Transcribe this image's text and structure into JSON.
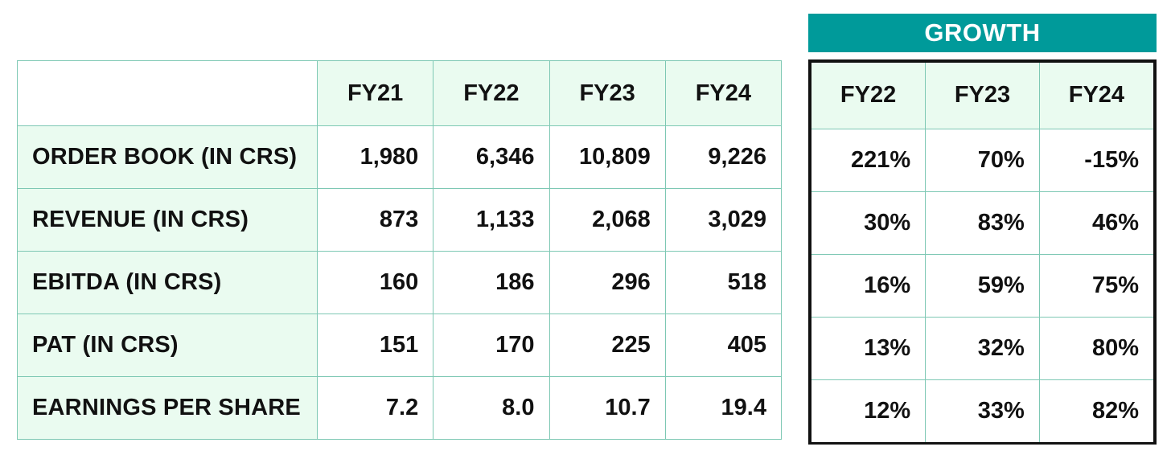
{
  "financials": {
    "headers": [
      "FY21",
      "FY22",
      "FY23",
      "FY24"
    ],
    "rows": [
      {
        "label": "ORDER BOOK (IN CRS)",
        "values": [
          "1,980",
          "6,346",
          "10,809",
          "9,226"
        ]
      },
      {
        "label": "REVENUE (IN CRS)",
        "values": [
          "873",
          "1,133",
          "2,068",
          "3,029"
        ]
      },
      {
        "label": "EBITDA (IN CRS)",
        "values": [
          "160",
          "186",
          "296",
          "518"
        ]
      },
      {
        "label": "PAT (IN CRS)",
        "values": [
          "151",
          "170",
          "225",
          "405"
        ]
      },
      {
        "label": "EARNINGS PER SHARE",
        "values": [
          "7.2",
          "8.0",
          "10.7",
          "19.4"
        ]
      }
    ]
  },
  "growth": {
    "title": "GROWTH",
    "headers": [
      "FY22",
      "FY23",
      "FY24"
    ],
    "rows": [
      [
        "221%",
        "70%",
        "-15%"
      ],
      [
        "30%",
        "83%",
        "46%"
      ],
      [
        "16%",
        "59%",
        "75%"
      ],
      [
        "13%",
        "32%",
        "80%"
      ],
      [
        "12%",
        "33%",
        "82%"
      ]
    ]
  },
  "colors": {
    "banner": "#009a9a",
    "header_fill": "#eafbf0",
    "grid_line": "#7ec8b4"
  }
}
